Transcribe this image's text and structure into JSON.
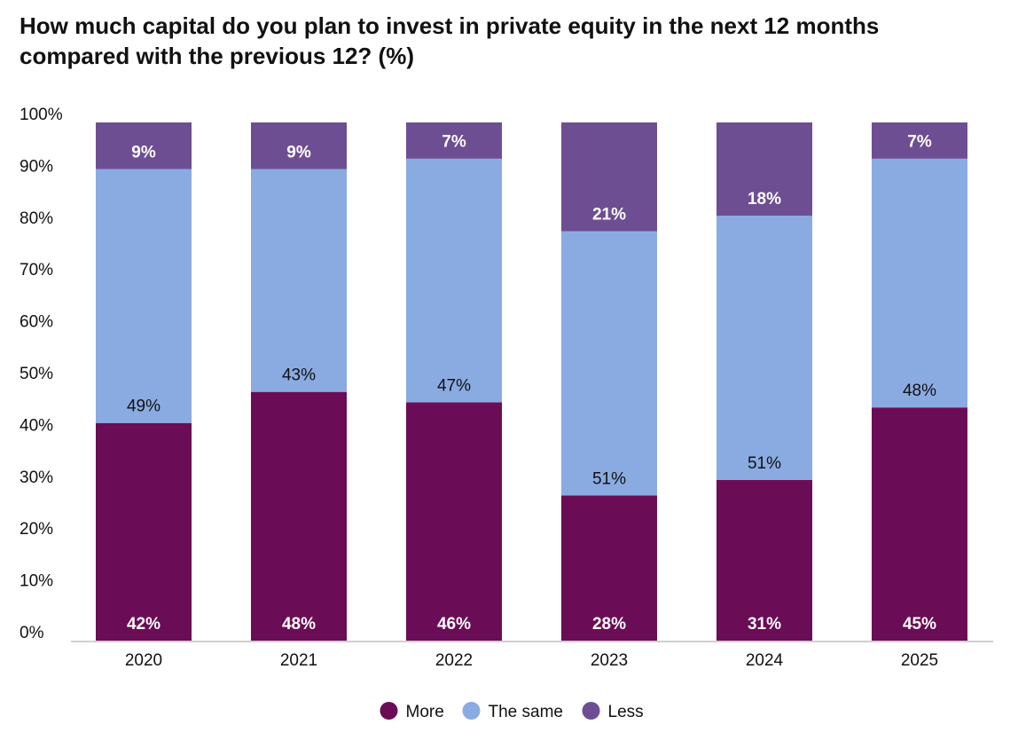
{
  "chart_data": {
    "type": "bar",
    "stacked": true,
    "title": "How much capital do you plan to invest in private equity in the next 12 months compared with the previous 12? (%)",
    "categories": [
      "2020",
      "2021",
      "2022",
      "2023",
      "2024",
      "2025"
    ],
    "series": [
      {
        "name": "More",
        "color": "#6b0c56",
        "values": [
          42,
          48,
          46,
          28,
          31,
          45
        ]
      },
      {
        "name": "The same",
        "color": "#8aabe2",
        "values": [
          49,
          43,
          47,
          51,
          51,
          48
        ]
      },
      {
        "name": "Less",
        "color": "#6e4e93",
        "values": [
          9,
          9,
          7,
          21,
          18,
          7
        ]
      }
    ],
    "y_ticks": [
      "0%",
      "10%",
      "20%",
      "30%",
      "40%",
      "50%",
      "60%",
      "70%",
      "80%",
      "90%",
      "100%"
    ],
    "ylim": [
      0,
      100
    ],
    "grid": false,
    "legend": "bottom-center"
  }
}
